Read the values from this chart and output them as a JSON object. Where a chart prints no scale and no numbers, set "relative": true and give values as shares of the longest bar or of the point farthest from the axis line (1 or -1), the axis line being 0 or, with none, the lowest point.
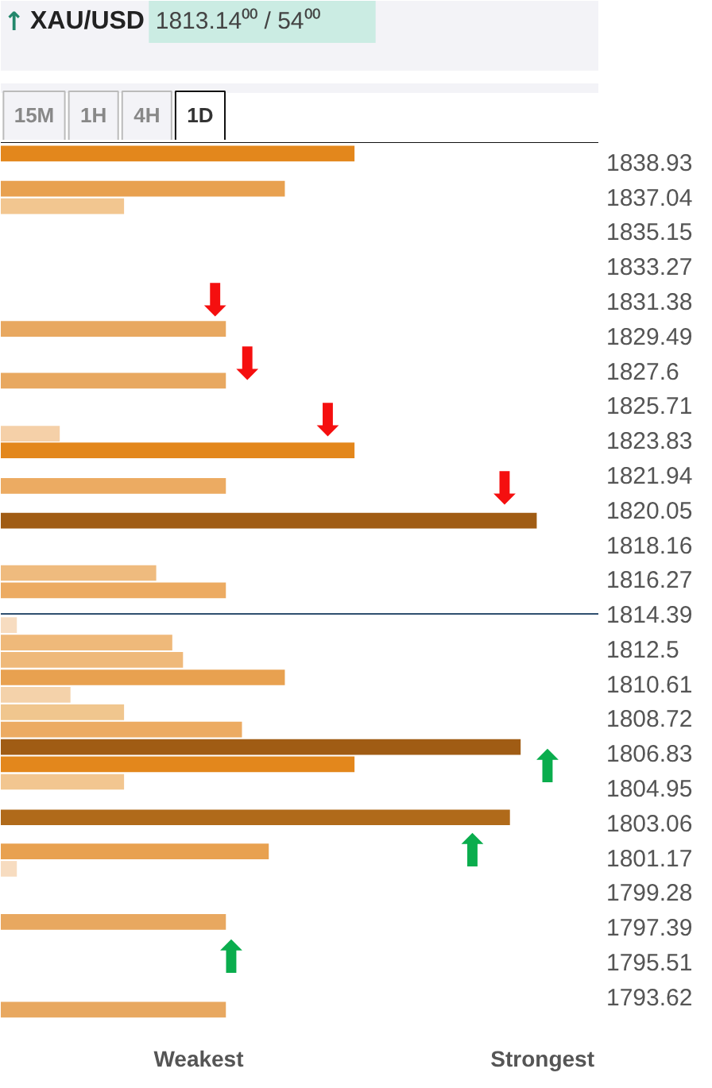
{
  "chart_data": {
    "type": "bar",
    "orientation": "horizontal",
    "relative": true,
    "x": [
      1839.38,
      1837.47,
      1836.52,
      1829.86,
      1827.05,
      1824.17,
      1823.27,
      1821.34,
      1819.45,
      1816.61,
      1815.67,
      1813.78,
      1812.83,
      1811.89,
      1810.94,
      1810.0,
      1809.05,
      1808.11,
      1807.16,
      1806.22,
      1805.27,
      1803.34,
      1801.49,
      1800.55,
      1797.67,
      1792.9
    ],
    "values": [
      0.66,
      0.53,
      0.23,
      0.42,
      0.42,
      0.11,
      0.66,
      0.42,
      1.0,
      0.29,
      0.42,
      0.03,
      0.32,
      0.34,
      0.53,
      0.13,
      0.23,
      0.45,
      0.97,
      0.66,
      0.23,
      0.95,
      0.5,
      0.03,
      0.42,
      0.42
    ],
    "colors": [
      "#e3871c",
      "#e8a150",
      "#f2c690",
      "#e8a860",
      "#e8a860",
      "#f5d0a8",
      "#e3871c",
      "#ecab62",
      "#a05c14",
      "#efbb7e",
      "#ecab62",
      "#f7dcc0",
      "#efb97a",
      "#efb97a",
      "#e8a150",
      "#f4d2aa",
      "#f0c68e",
      "#ecab62",
      "#a05c14",
      "#e3871c",
      "#f2c690",
      "#b06a1a",
      "#e8a150",
      "#f7dcc0",
      "#e8a860",
      "#e8a860"
    ],
    "ylim": [
      1792.4,
      1840.0
    ],
    "yticks": [
      1838.93,
      1837.04,
      1835.15,
      1833.27,
      1831.38,
      1829.49,
      1827.6,
      1825.71,
      1823.83,
      1821.94,
      1820.05,
      1818.16,
      1816.27,
      1814.39,
      1812.5,
      1810.61,
      1808.72,
      1806.83,
      1804.95,
      1803.06,
      1801.17,
      1799.28,
      1797.39,
      1795.51,
      1793.62
    ],
    "ref_lines": [
      {
        "axis": "y",
        "value": 1814.39,
        "color": "#2f4f6f"
      }
    ],
    "title": "XAU/USD",
    "subtitle": "1813.14⁰⁰ / 54⁰⁰",
    "annotations": [
      "↑",
      "15M",
      "1H",
      "4H",
      "1D",
      "Weakest",
      "Strongest",
      "⬇",
      "⬇",
      "⬇",
      "⬇",
      "⬆",
      "⬆",
      "⬆"
    ]
  }
}
